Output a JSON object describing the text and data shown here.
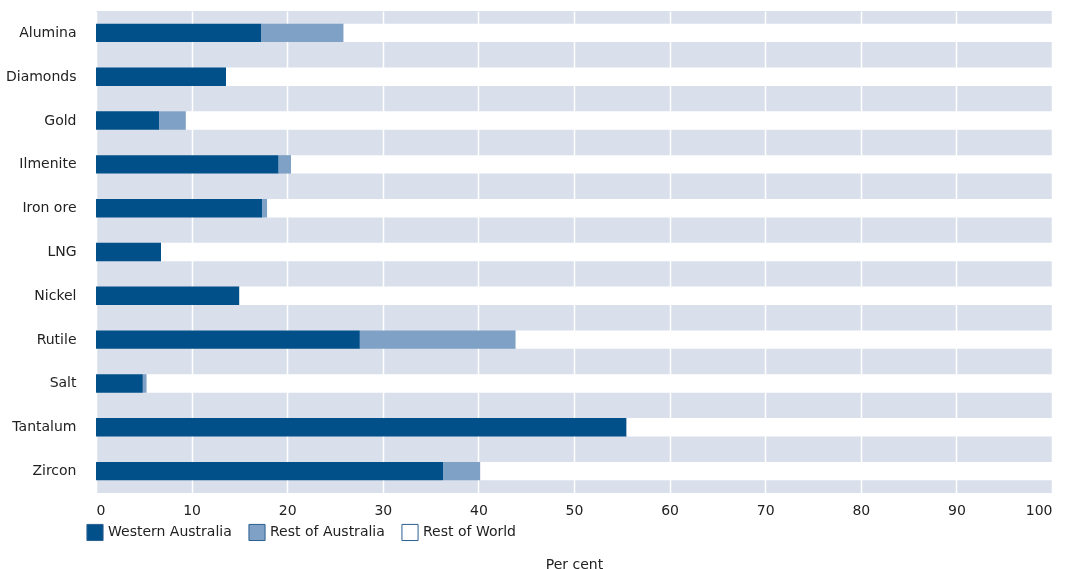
{
  "chart_data": {
    "type": "bar",
    "orientation": "horizontal",
    "stacked": true,
    "categories": [
      "Alumina",
      "Diamonds",
      "Gold",
      "Ilmenite",
      "Iron ore",
      "LNG",
      "Nickel",
      "Rutile",
      "Salt",
      "Tantalum",
      "Zircon"
    ],
    "series": [
      {
        "name": "Western Australia",
        "color": "#02508a",
        "values": [
          17.3,
          13.6,
          6.6,
          19.1,
          17.4,
          6.8,
          15.0,
          27.6,
          4.9,
          55.5,
          36.3
        ]
      },
      {
        "name": "Rest of Australia",
        "color": "#7fa1c6",
        "values": [
          8.6,
          0,
          2.8,
          1.3,
          0.5,
          0,
          0,
          16.3,
          0.4,
          0,
          3.9
        ]
      },
      {
        "name": "Rest of World",
        "color": "#ffffff",
        "values": [
          74.1,
          86.4,
          90.6,
          79.6,
          82.1,
          93.2,
          85.0,
          56.1,
          94.7,
          44.5,
          59.8
        ]
      }
    ],
    "xlim": [
      0,
      100
    ],
    "xticks": [
      0,
      10,
      20,
      30,
      40,
      50,
      60,
      70,
      80,
      90,
      100
    ],
    "xlabel": "Per cent",
    "grid": "x",
    "legend": "bottom left"
  }
}
